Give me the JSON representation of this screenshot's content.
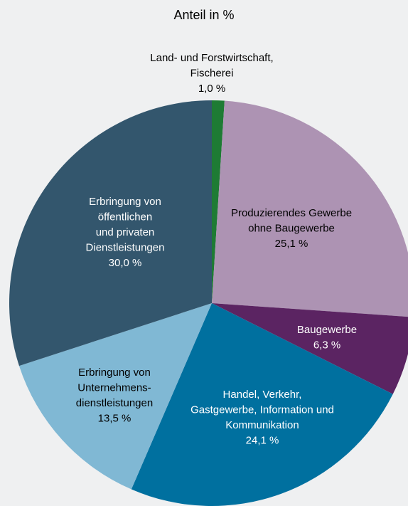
{
  "chart_data": {
    "type": "pie",
    "title": "Anteil in %",
    "categories": [
      [
        "Land- und Forstwirtschaft,",
        "Fischerei"
      ],
      [
        "Produzierendes Gewerbe",
        "ohne Baugewerbe"
      ],
      [
        "Baugewerbe"
      ],
      [
        "Handel, Verkehr,",
        "Gastgewerbe, Information und",
        "Kommunikation"
      ],
      [
        "Erbringung von",
        "Unternehmens-",
        "dienstleistungen"
      ],
      [
        "Erbringung von",
        "öffentlichen",
        "und privaten",
        "Dienstleistungen"
      ]
    ],
    "values": [
      1.0,
      25.1,
      6.3,
      24.1,
      13.5,
      30.0
    ],
    "value_labels": [
      "1,0 %",
      "25,1 %",
      "6,3 %",
      "24,1 %",
      "13,5 %",
      "30,0 %"
    ],
    "colors": [
      "#1e7b34",
      "#ad93b3",
      "#5b2462",
      "#00709f",
      "#80b8d4",
      "#33566d"
    ]
  }
}
